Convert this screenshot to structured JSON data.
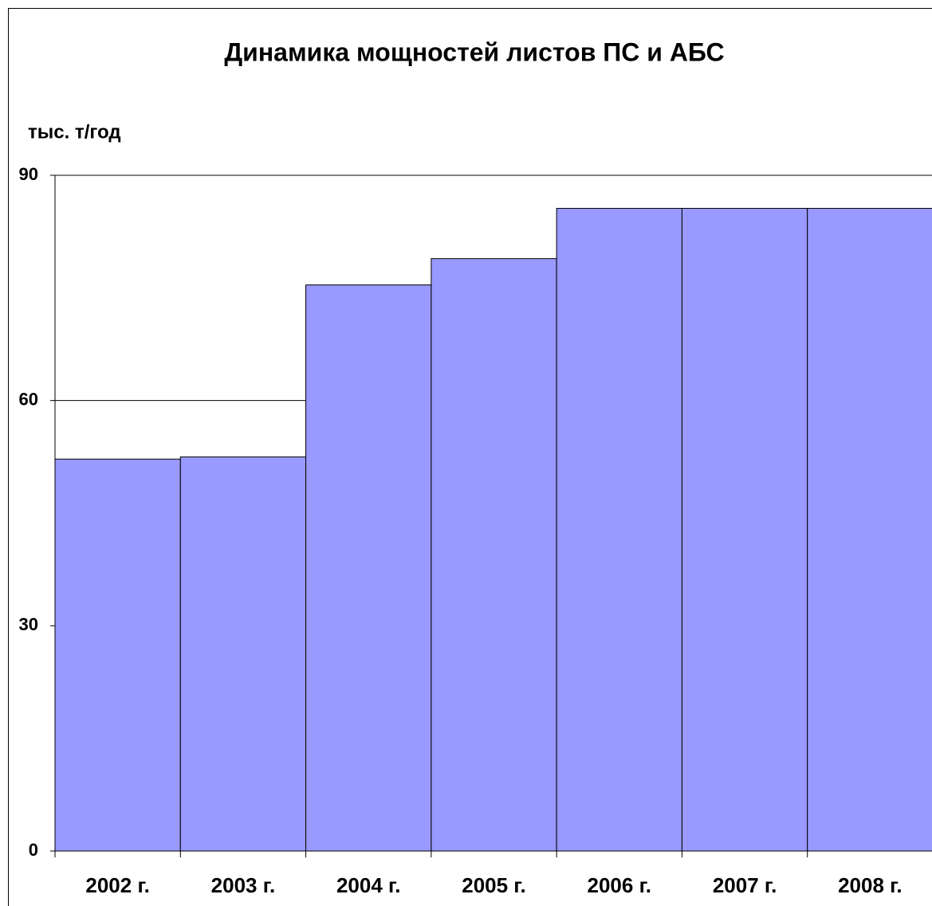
{
  "chart_data": {
    "type": "bar",
    "title": "Динамика мощностей листов ПС и АБС",
    "y_axis_label": "тыс. т/год",
    "categories": [
      "2002 г.",
      "2003 г.",
      "2004 г.",
      "2005 г.",
      "2006 г.",
      "2007 г.",
      "2008 г."
    ],
    "values": [
      52.2,
      52.5,
      75.4,
      78.9,
      85.6,
      85.6,
      85.6
    ],
    "color": "#9999ff",
    "ylim": [
      0,
      90
    ],
    "yticks": [
      0,
      30,
      60,
      90
    ],
    "grid": true
  }
}
